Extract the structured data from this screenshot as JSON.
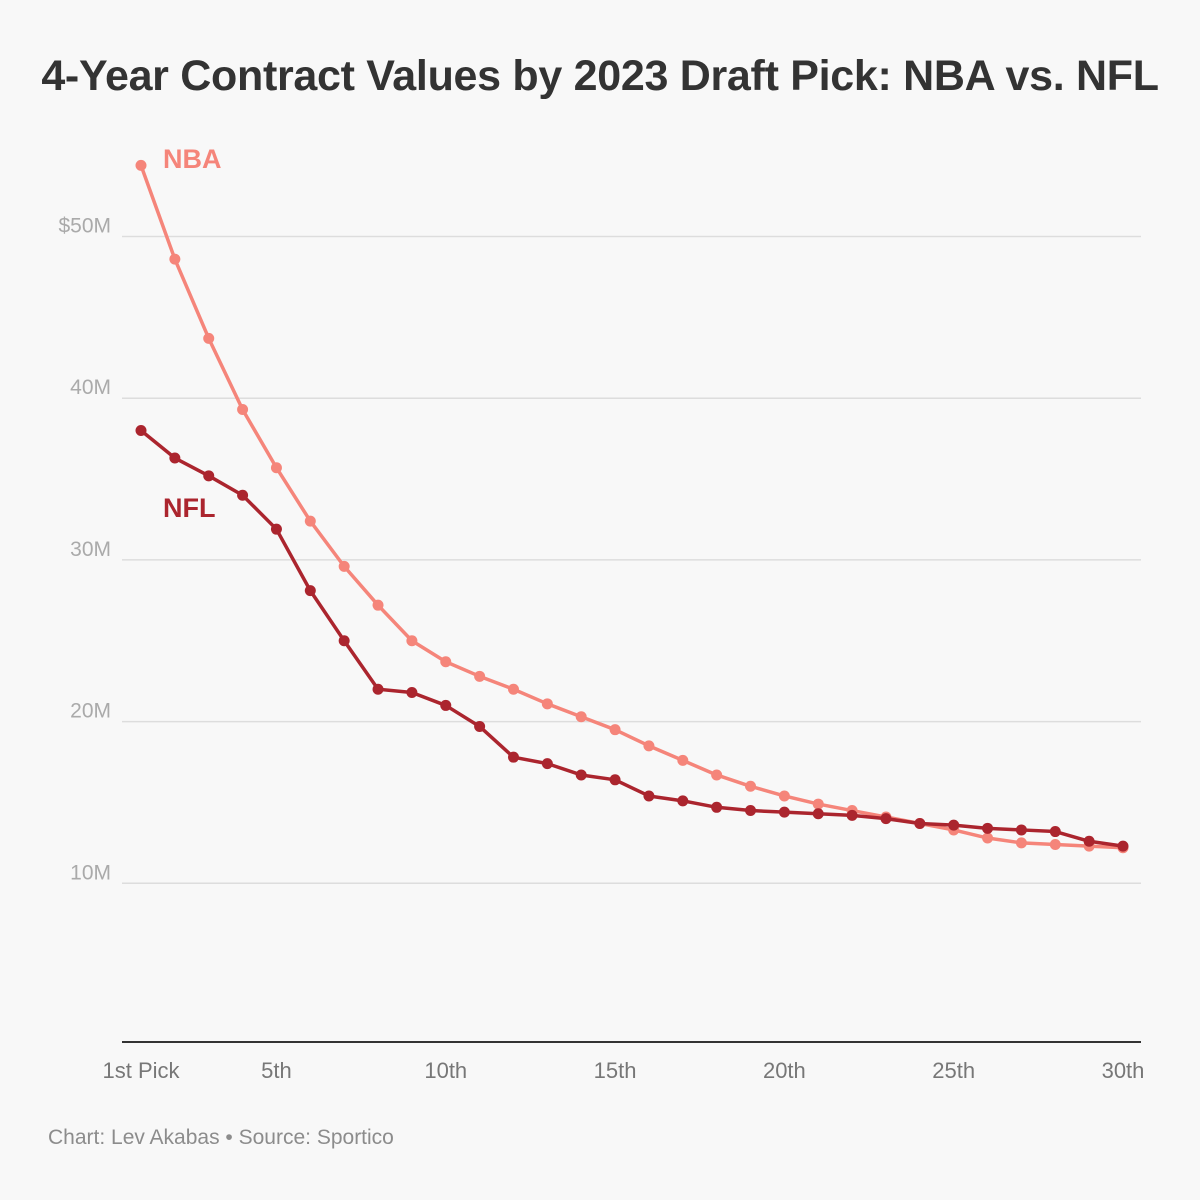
{
  "title": "4-Year Contract Values by 2023 Draft Pick: NBA vs. NFL",
  "source": "Chart: Lev Akabas • Source: Sportico",
  "colors": {
    "background": "#f8f8f8",
    "grid": "#dddddd",
    "axis": "#333333",
    "tick_text": "#aaaaaa",
    "x_tick_text": "#777777",
    "nba": "#f5857a",
    "nfl": "#ab252e"
  },
  "chart_data": {
    "type": "line",
    "title": "4-Year Contract Values by 2023 Draft Pick: NBA vs. NFL",
    "xlabel": "",
    "ylabel": "",
    "x": [
      1,
      2,
      3,
      4,
      5,
      6,
      7,
      8,
      9,
      10,
      11,
      12,
      13,
      14,
      15,
      16,
      17,
      18,
      19,
      20,
      21,
      22,
      23,
      24,
      25,
      26,
      27,
      28,
      29,
      30
    ],
    "x_ticks": [
      {
        "value": 1,
        "label": "1st Pick"
      },
      {
        "value": 5,
        "label": "5th"
      },
      {
        "value": 10,
        "label": "10th"
      },
      {
        "value": 15,
        "label": "15th"
      },
      {
        "value": 20,
        "label": "20th"
      },
      {
        "value": 25,
        "label": "25th"
      },
      {
        "value": 30,
        "label": "30th"
      }
    ],
    "y_ticks": [
      {
        "value": 10,
        "label": "10M"
      },
      {
        "value": 20,
        "label": "20M"
      },
      {
        "value": 30,
        "label": "30M"
      },
      {
        "value": 40,
        "label": "40M"
      },
      {
        "value": 50,
        "label": "$50M"
      }
    ],
    "xlim": [
      0.5,
      30.5
    ],
    "ylim": [
      0,
      60
    ],
    "grid": true,
    "legend": "inline labels",
    "series": [
      {
        "name": "NBA",
        "color": "#f5857a",
        "values": [
          54.4,
          48.6,
          43.7,
          39.3,
          35.7,
          32.4,
          29.6,
          27.2,
          25.0,
          23.7,
          22.8,
          22.0,
          21.1,
          20.3,
          19.5,
          18.5,
          17.6,
          16.7,
          16.0,
          15.4,
          14.9,
          14.5,
          14.1,
          13.7,
          13.3,
          12.8,
          12.5,
          12.4,
          12.3,
          12.2
        ]
      },
      {
        "name": "NFL",
        "color": "#ab252e",
        "values": [
          38.0,
          36.3,
          35.2,
          34.0,
          31.9,
          28.1,
          25.0,
          22.0,
          21.8,
          21.0,
          19.7,
          17.8,
          17.4,
          16.7,
          16.4,
          15.4,
          15.1,
          14.7,
          14.5,
          14.4,
          14.3,
          14.2,
          14.0,
          13.7,
          13.6,
          13.4,
          13.3,
          13.2,
          12.6,
          12.3
        ]
      }
    ]
  }
}
